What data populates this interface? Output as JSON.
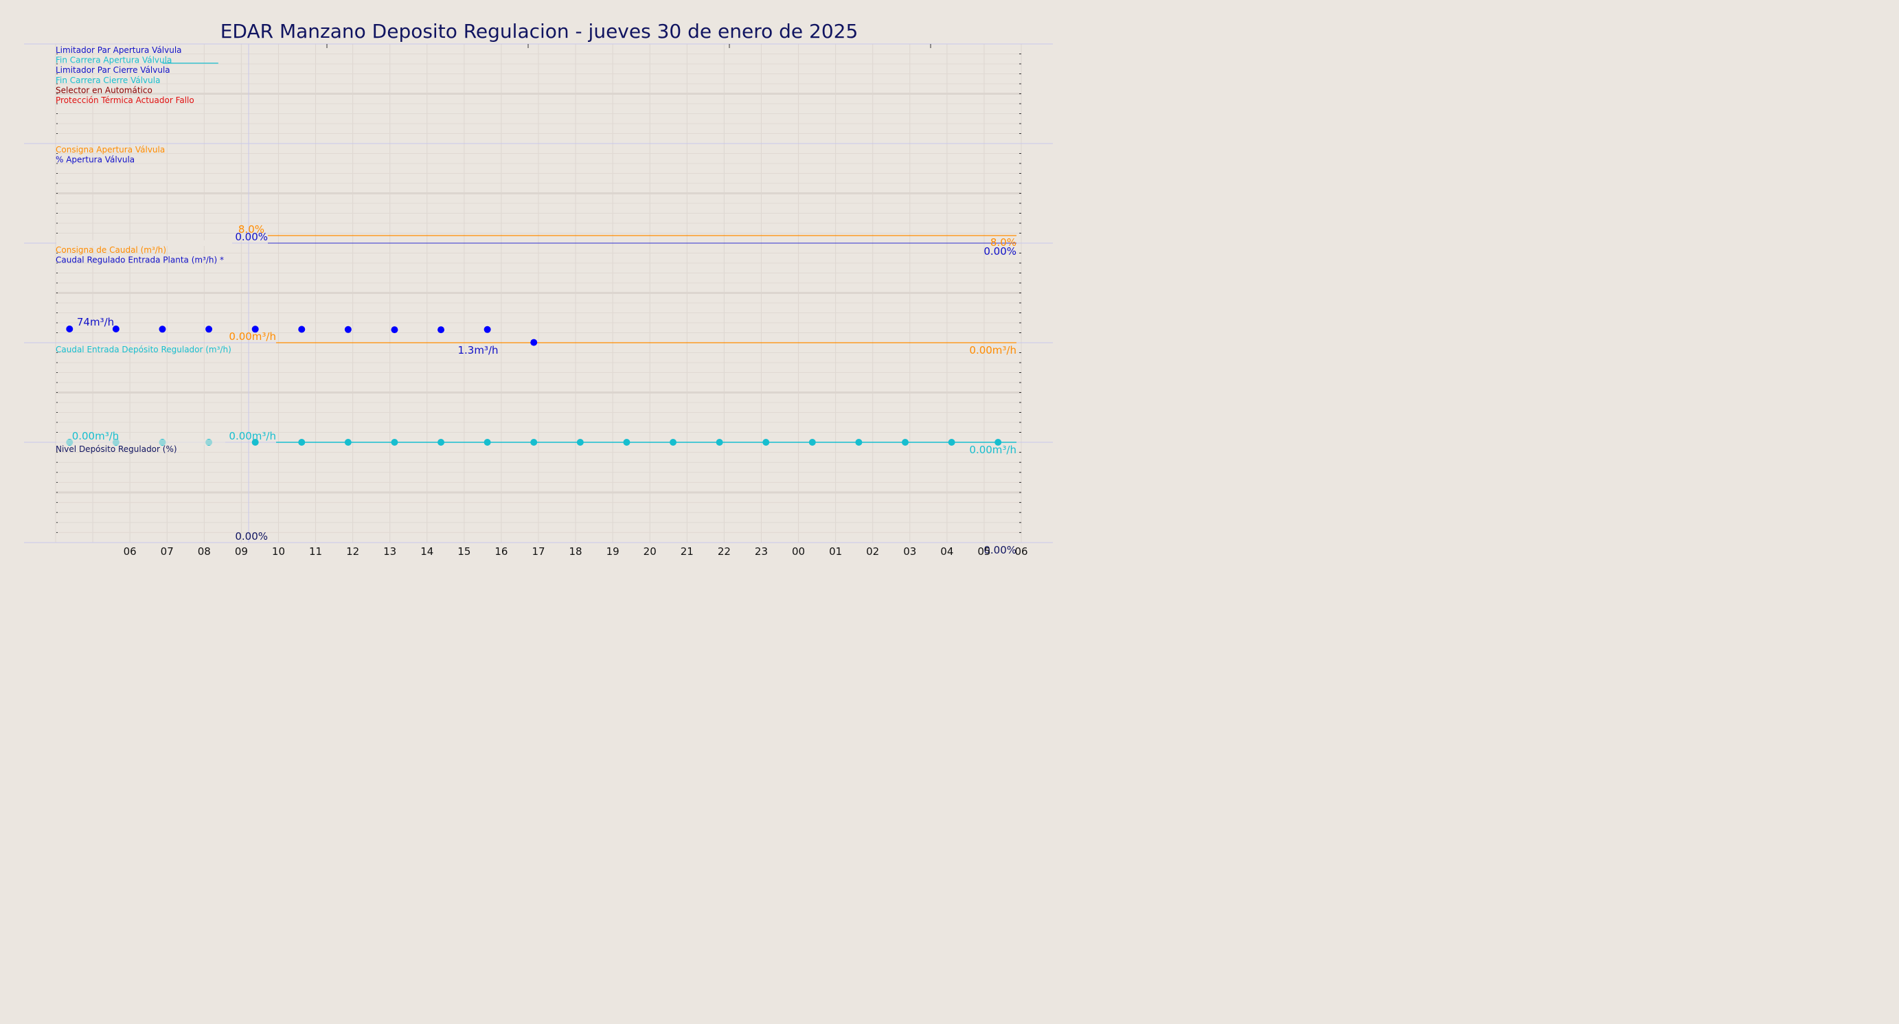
{
  "chart_data": {
    "type": "line",
    "title": "EDAR Manzano Deposito Regulacion   -   jueves 30 de enero de 2025",
    "x_ticks": [
      "06",
      "07",
      "08",
      "09",
      "10",
      "11",
      "12",
      "13",
      "14",
      "15",
      "16",
      "17",
      "18",
      "19",
      "20",
      "21",
      "22",
      "23",
      "00",
      "01",
      "02",
      "03",
      "04",
      "05",
      "06"
    ],
    "grid": true,
    "panels": [
      {
        "id": "digital",
        "legend": [
          {
            "label": "Limitador Par Apertura Válvula",
            "color": "#1010c8"
          },
          {
            "label": "Fin Carrera Apertura Válvula",
            "color": "#17becf"
          },
          {
            "label": "Limitador Par Cierre Válvula",
            "color": "#1010c8"
          },
          {
            "label": "Fin Carrera Cierre Válvula",
            "color": "#17becf"
          },
          {
            "label": "Selector en Automático",
            "color": "#8b0000"
          },
          {
            "label": "Protección Térmica Actuador Fallo",
            "color": "#e01010"
          }
        ],
        "series": [
          {
            "name": "Fin Carrera Apertura Válvula",
            "color": "#17becf",
            "x": [
              6.88,
              8.38
            ],
            "y": [
              1,
              1
            ]
          }
        ]
      },
      {
        "id": "valve",
        "legend": [
          {
            "label": "Consigna Apertura Válvula",
            "color": "#ff8c00"
          },
          {
            "label": "% Apertura Válvula",
            "color": "#1010c8"
          }
        ],
        "series": [
          {
            "name": "Consigna Apertura Válvula",
            "color": "#ff8c00",
            "x": [
              6.6,
              30.0
            ],
            "y": [
              8.0,
              8.0
            ]
          },
          {
            "name": "% Apertura Válvula",
            "color": "#1010c8",
            "x": [
              6.6,
              30.0
            ],
            "y": [
              0.0,
              0.0
            ]
          }
        ],
        "labels": {
          "sp_start": "8.0%",
          "sp_end": "8.0%",
          "pos_start": "0.00%",
          "pos_end": "0.00%"
        }
      },
      {
        "id": "flow",
        "legend": [
          {
            "label": "Consigna de Caudal (m³/h)",
            "color": "#ff8c00"
          },
          {
            "label": "Caudal Regulado Entrada Planta (m³/h) *",
            "color": "#1010c8"
          }
        ],
        "series": [
          {
            "name": "Consigna de Caudal (m³/h)",
            "color": "#ff8c00",
            "x": [
              6.85,
              30.0
            ],
            "y": [
              0.0,
              0.0
            ]
          },
          {
            "name": "Caudal Regulado Entrada Planta (m³/h) *",
            "color": "#0000ff",
            "x": [
              4.375,
              5.625,
              6.875,
              8.125,
              9.375,
              10.625,
              11.875,
              13.125,
              14.375,
              15.625,
              16.875
            ],
            "y": [
              74,
              74,
              73,
              73,
              73,
              72,
              71,
              70,
              70,
              71,
              1.3
            ]
          }
        ],
        "labels": {
          "first": "74m³/h",
          "last": "1.3m³/h",
          "sp_start": "0.00m³/h",
          "sp_end": "0.00m³/h"
        }
      },
      {
        "id": "tank_in",
        "legend": [
          {
            "label": "Caudal Entrada Depósito Regulador (m³/h)",
            "color": "#17becf"
          }
        ],
        "series": [
          {
            "name": "Caudal Entrada Depósito Regulador (m³/h)",
            "color": "#17becf",
            "x": [
              4.375,
              5.625,
              6.875,
              8.125,
              9.375,
              10.625,
              11.875,
              13.125,
              14.375,
              15.625,
              16.875,
              18.125,
              19.375,
              20.625,
              21.875,
              23.125,
              24.375,
              25.625,
              26.875,
              28.125,
              29.375
            ],
            "y": [
              0,
              0,
              0,
              0,
              0,
              0,
              0,
              0,
              0,
              0,
              0,
              0,
              0,
              0,
              0,
              0,
              0,
              0,
              0,
              0,
              0
            ]
          }
        ],
        "labels": {
          "first": "0.00m³/h",
          "start": "0.00m³/h",
          "end": "0.00m³/h"
        }
      },
      {
        "id": "level",
        "legend": [
          {
            "label": "Nivel Depósito Regulador (%)",
            "color": "#101460"
          }
        ],
        "series": [
          {
            "name": "Nivel Depósito Regulador (%)",
            "color": "#101460",
            "x": [
              6.6,
              30.0
            ],
            "y": [
              0,
              0
            ]
          }
        ],
        "labels": {
          "start": "0.00%",
          "end": "0.00%"
        }
      }
    ]
  }
}
